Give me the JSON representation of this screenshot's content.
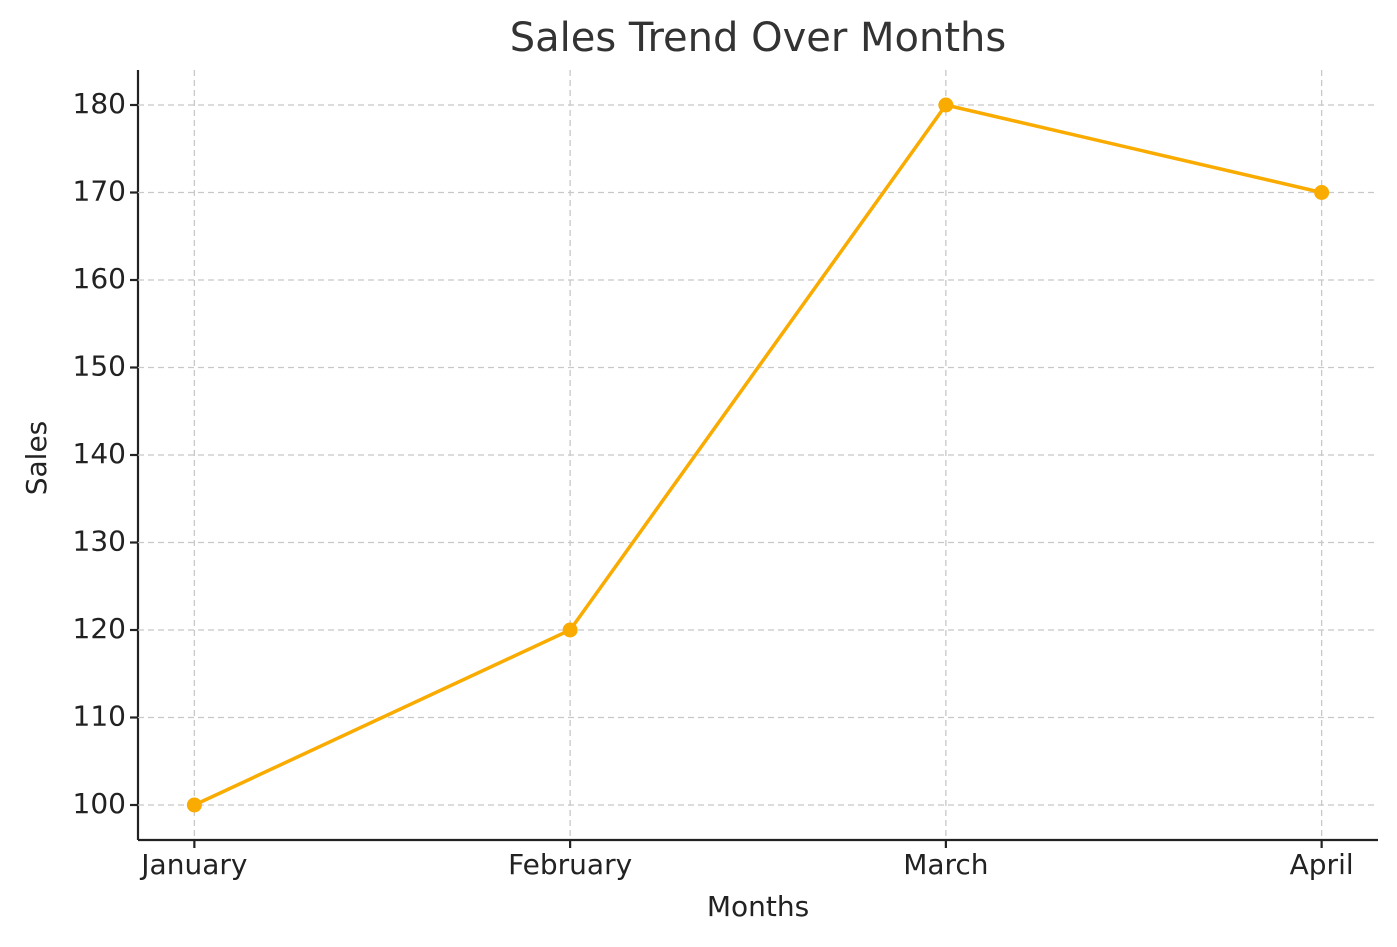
{
  "chart_data": {
    "type": "line",
    "title": "Sales Trend Over Months",
    "x_label": "Months",
    "y_label": "Sales",
    "categories": [
      "January",
      "February",
      "March",
      "April"
    ],
    "values": [
      100,
      120,
      180,
      170
    ],
    "color": "#f9ab00",
    "ylim": [
      96,
      184
    ],
    "yticks": [
      100,
      110,
      120,
      130,
      140,
      150,
      160,
      170,
      180
    ],
    "grid": true
  }
}
